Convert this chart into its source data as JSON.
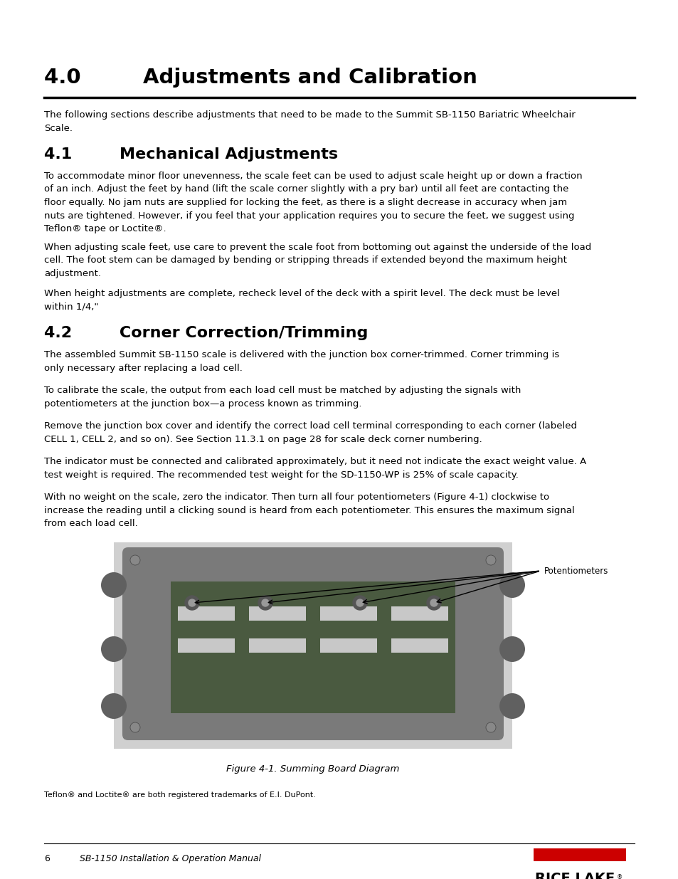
{
  "title": "4.0   Adjustments and Calibration",
  "section1_heading": "4.1   Mechanical Adjustments",
  "section1_para1": "To accommodate minor floor unevenness, the scale feet can be used to adjust scale height up or down a fraction\nof an inch. Adjust the feet by hand (lift the scale corner slightly with a pry bar) until all feet are contacting the\nfloor equally. No jam nuts are supplied for locking the feet, as there is a slight decrease in accuracy when jam\nnuts are tightened. However, if you feel that your application requires you to secure the feet, we suggest using\nTeflon® tape or Loctite®.",
  "section1_para2": "When adjusting scale feet, use care to prevent the scale foot from bottoming out against the underside of the load\ncell. The foot stem can be damaged by bending or stripping threads if extended beyond the maximum height\nadjustment.",
  "section1_para3": "When height adjustments are complete, recheck level of the deck with a spirit level. The deck must be level\nwithin 1/4,\"",
  "section2_heading": "4.2   Corner Correction/Trimming",
  "section2_para1": "The assembled Summit SB-1150 scale is delivered with the junction box corner-trimmed. Corner trimming is\nonly necessary after replacing a load cell.",
  "section2_para2": "To calibrate the scale, the output from each load cell must be matched by adjusting the signals with\npotentiometers at the junction box—a process known as trimming.",
  "section2_para3": "Remove the junction box cover and identify the correct load cell terminal corresponding to each corner (labeled\nCELL 1, CELL 2, and so on). See Section 11.3.1 on page 28 for scale deck corner numbering.",
  "section2_para4": "The indicator must be connected and calibrated approximately, but it need not indicate the exact weight value. A\ntest weight is required. The recommended test weight for the SD-1150-WP is 25% of scale capacity.",
  "section2_para5": "With no weight on the scale, zero the indicator. Then turn all four potentiometers (Figure 4-1) clockwise to\nincrease the reading until a clicking sound is heard from each potentiometer. This ensures the maximum signal\nfrom each load cell.",
  "figure_caption": "Figure 4-1. Summing Board Diagram",
  "annotation_text": "Potentiometers",
  "footnote": "Teflon® and Loctite® are both registered trademarks of E.I. DuPont.",
  "footer_page": "6",
  "footer_text": "SB-1150 Installation & Operation Manual",
  "bg_color": "#ffffff",
  "text_color": "#000000",
  "heading_color": "#000000",
  "rule_color": "#000000",
  "red_color": "#cc0000"
}
